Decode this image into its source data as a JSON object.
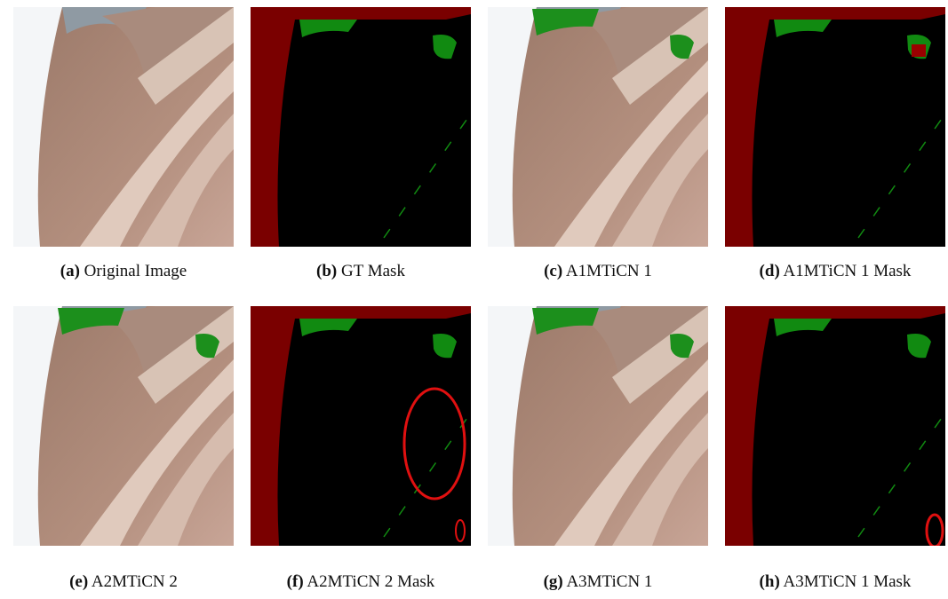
{
  "figure": {
    "panels": [
      {
        "letter": "(a)",
        "caption": "Original Image"
      },
      {
        "letter": "(b)",
        "caption": "GT Mask"
      },
      {
        "letter": "(c)",
        "caption": "A1MTiCN 1"
      },
      {
        "letter": "(d)",
        "caption": "A1MTiCN 1 Mask"
      },
      {
        "letter": "(e)",
        "caption": "A2MTiCN 2"
      },
      {
        "letter": "(f)",
        "caption": "A2MTiCN 2 Mask"
      },
      {
        "letter": "(g)",
        "caption": "A3MTiCN 1"
      },
      {
        "letter": "(h)",
        "caption": "A3MTiCN 1 Mask"
      }
    ]
  }
}
